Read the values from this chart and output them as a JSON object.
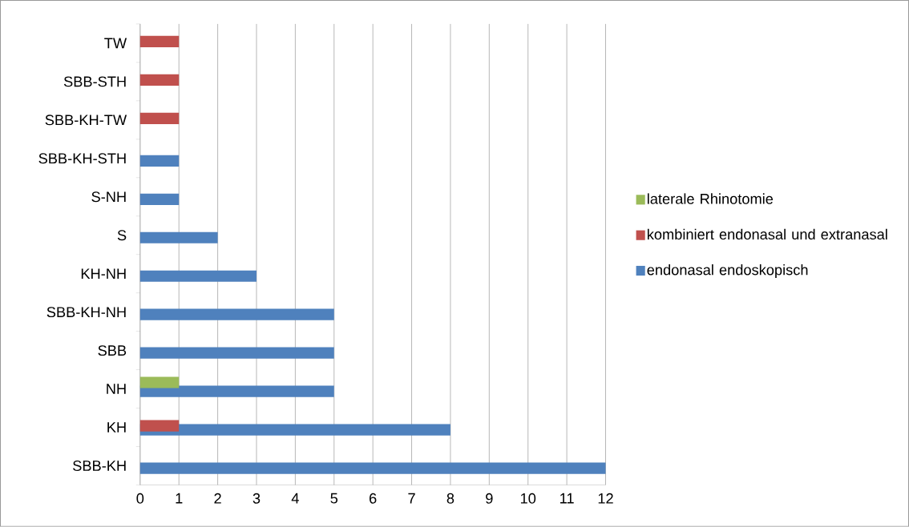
{
  "chart_data": {
    "type": "bar",
    "orientation": "horizontal",
    "categories": [
      "TW",
      "SBB-STH",
      "SBB-KH-TW",
      "SBB-KH-STH",
      "S-NH",
      "S",
      "KH-NH",
      "SBB-KH-NH",
      "SBB",
      "NH",
      "KH",
      "SBB-KH"
    ],
    "series": [
      {
        "name": "endonasal endoskopisch",
        "color": "#4f81bd",
        "values": [
          null,
          null,
          null,
          1,
          1,
          2,
          3,
          5,
          5,
          5,
          8,
          12
        ]
      },
      {
        "name": "kombiniert endonasal und extranasal",
        "color": "#c0504d",
        "values": [
          1,
          1,
          1,
          null,
          null,
          null,
          null,
          null,
          null,
          null,
          1,
          null
        ]
      },
      {
        "name": "laterale Rhinotomie",
        "color": "#9bbb59",
        "values": [
          null,
          null,
          null,
          null,
          null,
          null,
          null,
          null,
          null,
          1,
          null,
          null
        ]
      }
    ],
    "xlim": [
      0,
      12
    ],
    "xticks": [
      0,
      1,
      2,
      3,
      4,
      5,
      6,
      7,
      8,
      9,
      10,
      11,
      12
    ],
    "grid": "x",
    "legend": "right"
  }
}
